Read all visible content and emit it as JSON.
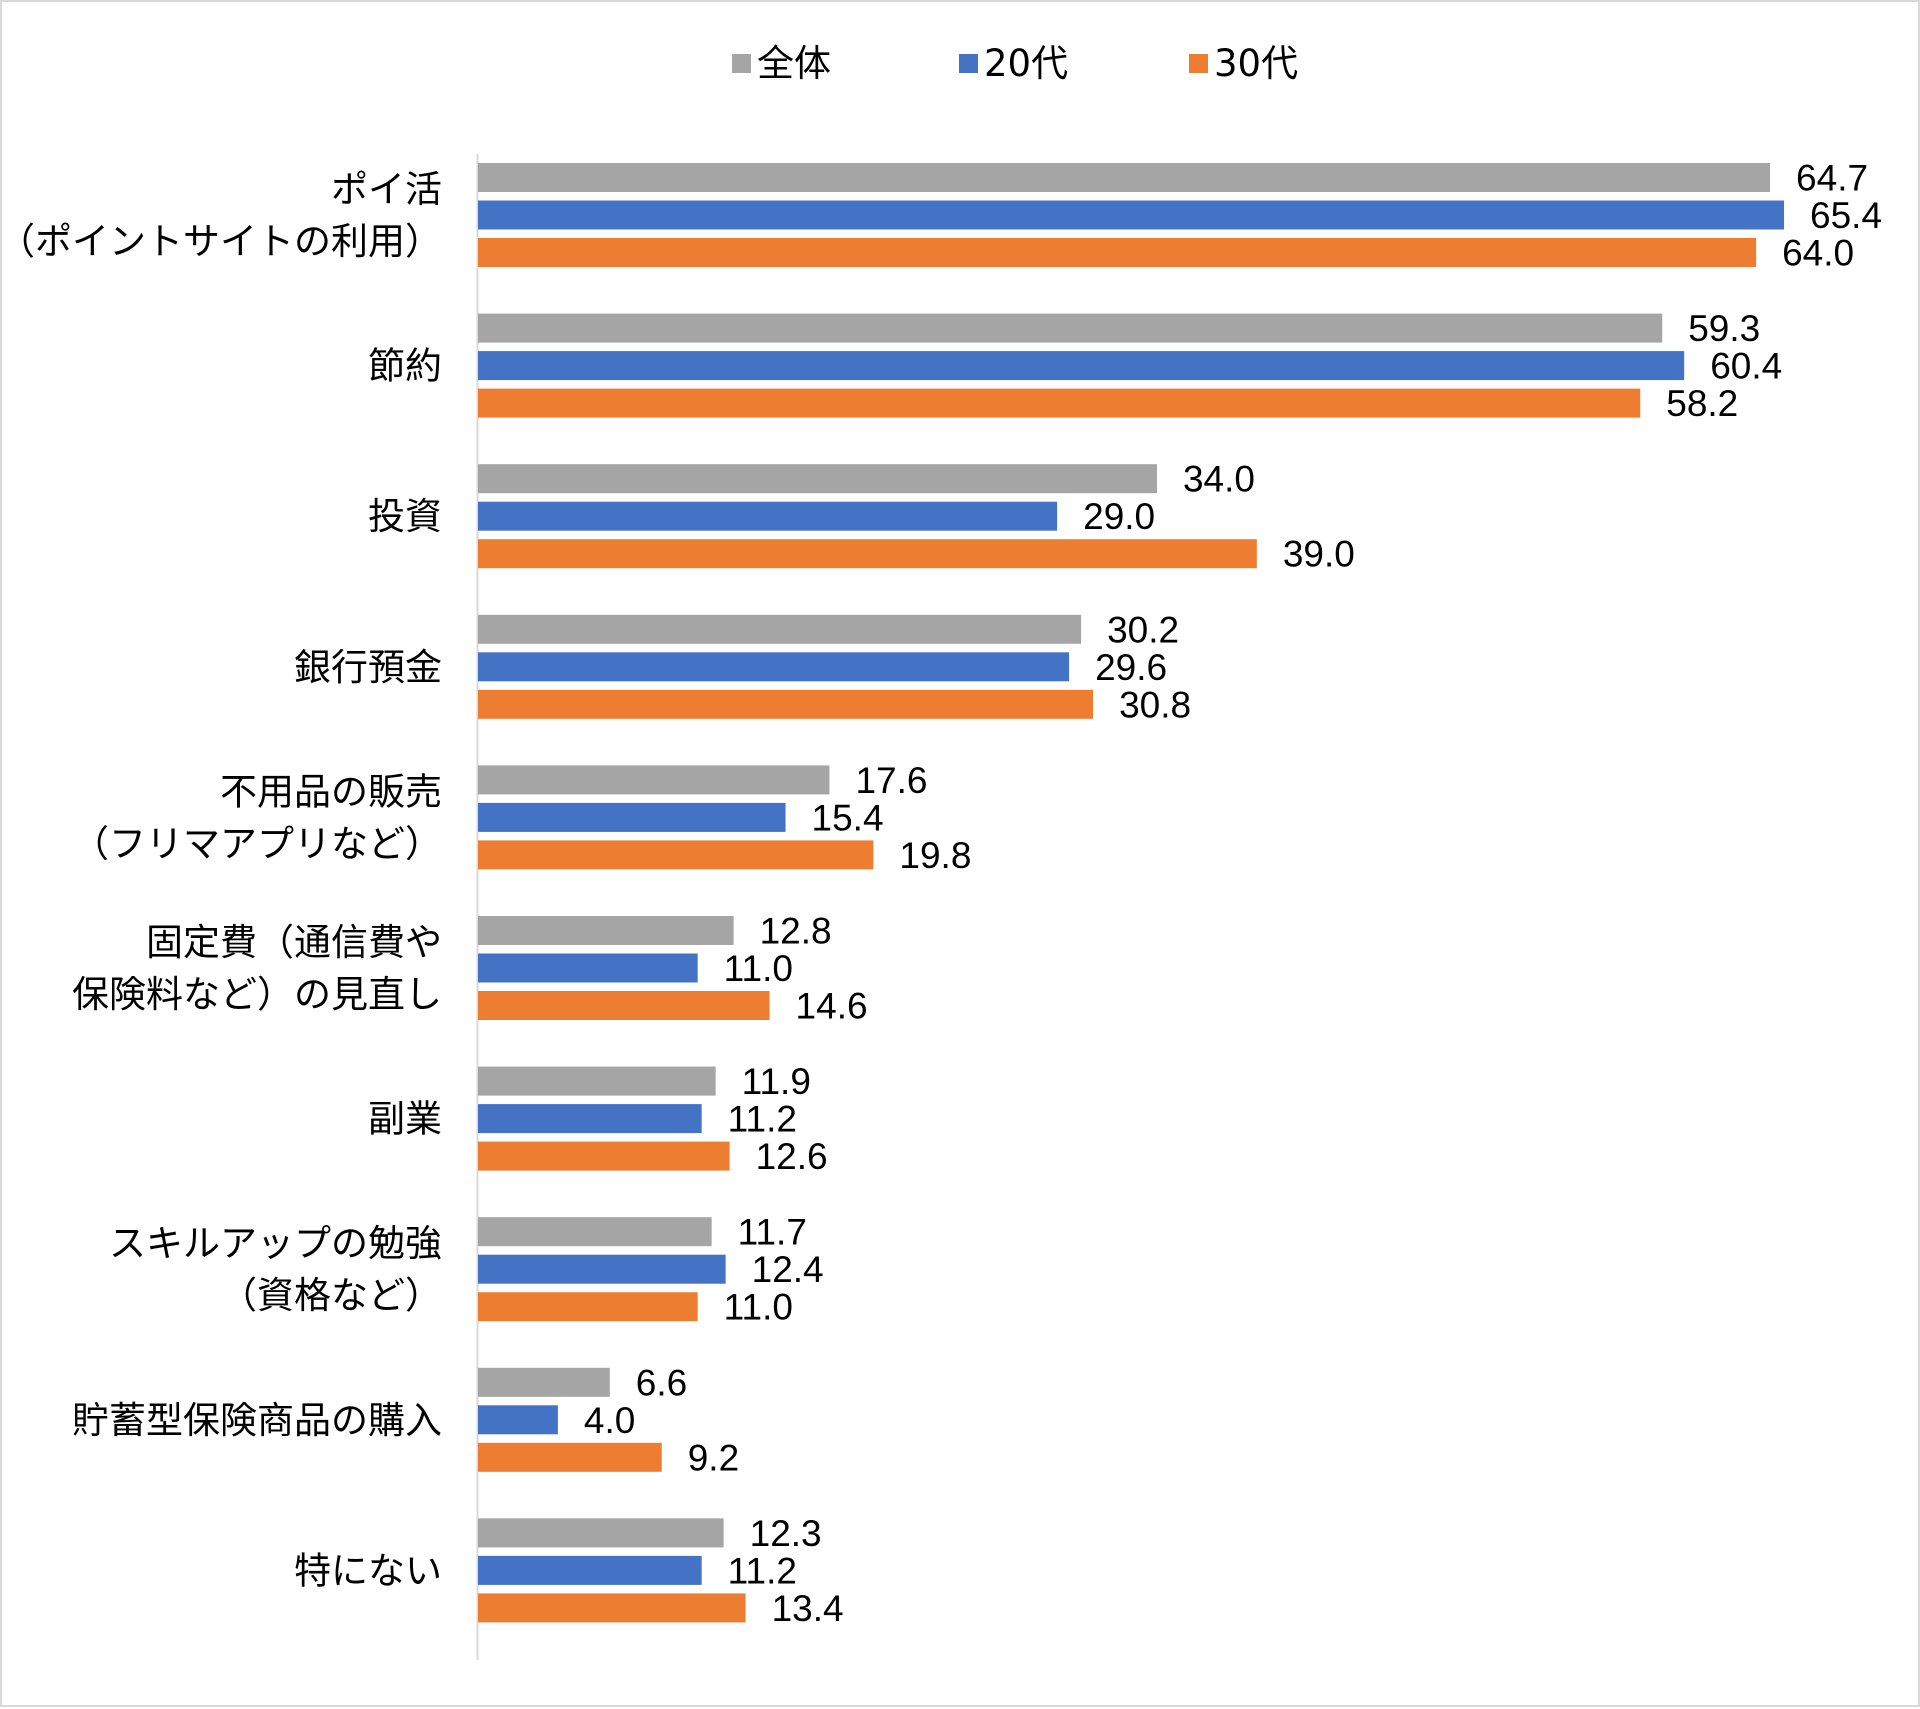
{
  "chart_data": {
    "type": "bar",
    "orientation": "horizontal",
    "title": "",
    "xlabel": "",
    "ylabel": "",
    "xlim": [
      0,
      70
    ],
    "grid": false,
    "legend_position": "top",
    "categories": [
      [
        "ポイ活",
        "（ポイントサイトの利用）"
      ],
      [
        "節約"
      ],
      [
        "投資"
      ],
      [
        "銀行預金"
      ],
      [
        "不用品の販売",
        "（フリマアプリなど）"
      ],
      [
        "固定費（通信費や",
        "保険料など）の見直し"
      ],
      [
        "副業"
      ],
      [
        "スキルアップの勉強",
        "（資格など）"
      ],
      [
        "貯蓄型保険商品の購入"
      ],
      [
        "特にない"
      ]
    ],
    "series": [
      {
        "name": "全体",
        "color": "#a5a5a5",
        "values": [
          64.7,
          59.3,
          34.0,
          30.2,
          17.6,
          12.8,
          11.9,
          11.7,
          6.6,
          12.3
        ],
        "labels": [
          "64.7",
          "59.3",
          "34.0",
          "30.2",
          "17.6",
          "12.8",
          "11.9",
          "11.7",
          "6.6",
          "12.3"
        ]
      },
      {
        "name": "20代",
        "color": "#4472c4",
        "values": [
          65.4,
          60.4,
          29.0,
          29.6,
          15.4,
          11.0,
          11.2,
          12.4,
          4.0,
          11.2
        ],
        "labels": [
          "65.4",
          "60.4",
          "29.0",
          "29.6",
          "15.4",
          "11.0",
          "11.2",
          "12.4",
          "4.0",
          "11.2"
        ]
      },
      {
        "name": "30代",
        "color": "#ed7d31",
        "values": [
          64.0,
          58.2,
          39.0,
          30.8,
          19.8,
          14.6,
          12.6,
          11.0,
          9.2,
          13.4
        ],
        "labels": [
          "64.0",
          "58.2",
          "39.0",
          "30.8",
          "19.8",
          "14.6",
          "12.6",
          "11.0",
          "9.2",
          "13.4"
        ]
      }
    ]
  }
}
